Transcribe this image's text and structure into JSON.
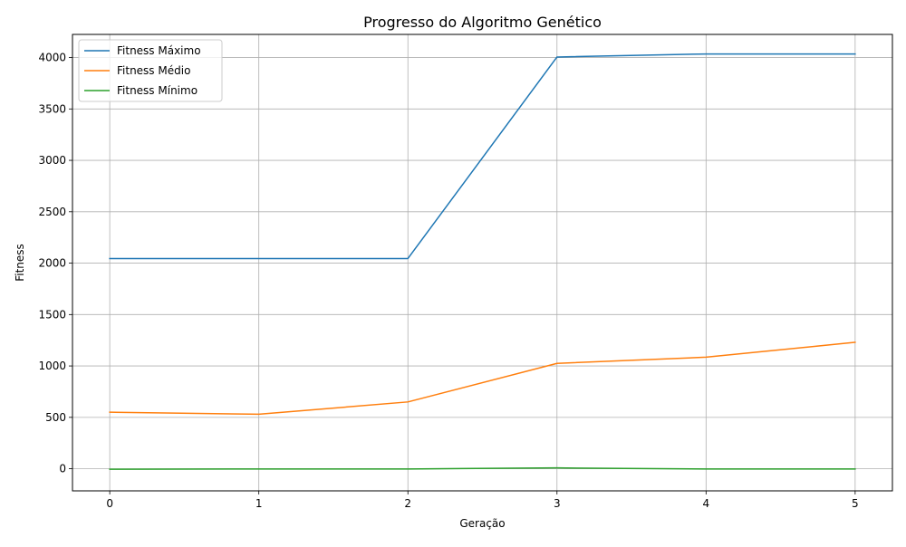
{
  "chart_data": {
    "type": "line",
    "title": "Progresso do Algoritmo Genético",
    "xlabel": "Geração",
    "ylabel": "Fitness",
    "x": [
      0,
      1,
      2,
      3,
      4,
      5
    ],
    "xticks": [
      0,
      1,
      2,
      3,
      4,
      5
    ],
    "yticks": [
      0,
      500,
      1000,
      1500,
      2000,
      2500,
      3000,
      3500,
      4000
    ],
    "xlim": [
      -0.25,
      5.25
    ],
    "ylim": [
      -215,
      4225
    ],
    "grid": true,
    "legend_position": "top-left",
    "series": [
      {
        "name": "Fitness Máximo",
        "color": "#1f77b4",
        "values": [
          2045,
          2045,
          2045,
          4005,
          4035,
          4035
        ]
      },
      {
        "name": "Fitness Médio",
        "color": "#ff7f0e",
        "values": [
          550,
          530,
          650,
          1025,
          1085,
          1230
        ]
      },
      {
        "name": "Fitness Mínimo",
        "color": "#2ca02c",
        "values": [
          -5,
          -2,
          -2,
          8,
          -2,
          -2
        ]
      }
    ]
  }
}
